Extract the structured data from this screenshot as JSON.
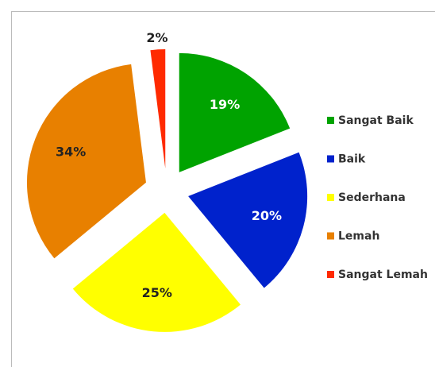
{
  "chart_data": {
    "type": "pie",
    "categories": [
      "Sangat Baik",
      "Baik",
      "Sederhana",
      "Lemah",
      "Sangat Lemah"
    ],
    "values": [
      19,
      20,
      25,
      34,
      2
    ],
    "value_labels": [
      "19%",
      "20%",
      "25%",
      "34%",
      "2%"
    ],
    "colors": [
      "#00a300",
      "#0022cc",
      "#ffff00",
      "#e88000",
      "#ff2a00"
    ],
    "legend": "right"
  }
}
